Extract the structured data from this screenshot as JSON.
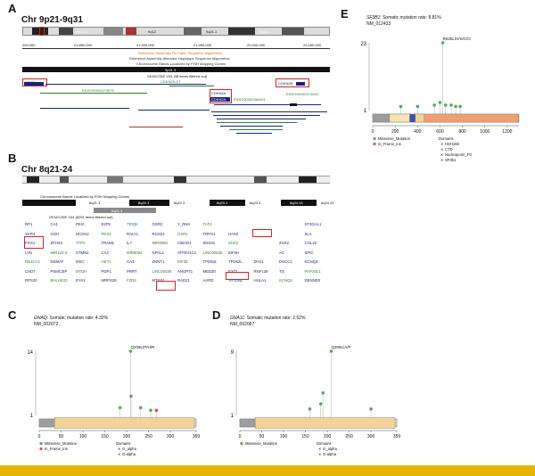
{
  "panels": {
    "A": {
      "label": "A",
      "title": "Chr 9p21-9q31",
      "ruler": [
        "000,000",
        "21,850,000",
        "21,900,000",
        "21,950,000",
        "22,000,000",
        "22,050,000"
      ],
      "track_lines": [
        "Reference Assembly Fix Patch Sequence Alignments",
        "Reference Assembly Alternate Haplotype Sequence Alignments",
        "Chromosome Bands Localized by FISH Mapping Clones"
      ],
      "band": "9p21.3",
      "gencode": "GENCODE V44 (38 items filtered out)",
      "genes": [
        "MTAP",
        "CDKN2A-DT",
        "CDKN2B",
        "CDKN2A",
        "CDKN2A",
        "ENSG00000274055",
        "ENSG00000279675",
        "ENSG00000284401"
      ],
      "cyto_bands": [
        "9p13.3",
        "9q12",
        "9q21.1",
        "9q31.1"
      ]
    },
    "B": {
      "label": "B",
      "title": "Chr 8q21-24",
      "track_lines": [
        "Chromosome Bands Localized by FISH Mapping Clones"
      ],
      "bands": [
        "8q21.3",
        "8q22.1",
        "8q22.3",
        "8q23.1",
        "8q23.3",
        "8q24.13",
        "8q24.22"
      ],
      "gencode": "GENCODE V44 (8251 items filtered out)",
      "gene_rows": [
        [
          "RP1",
          "CA1",
          "PKIA",
          "E2F5",
          "TRIQK",
          "OSR2",
          "Y_RNA",
          "TAF2",
          "",
          "",
          "",
          "ST3GAL1"
        ],
        [
          "XKR4",
          "GGH",
          "NCOA2",
          "PEX2",
          "RALYL",
          "RGS22",
          "OXR1",
          "TRPS1",
          "HAS2",
          "",
          "",
          "SLA"
        ],
        [
          "FGS1",
          "ZFHX4",
          "TTPA",
          "TRAM1",
          "IL7",
          "MIR8084",
          "CIBAR1",
          "SNX31",
          "ZHX2",
          "",
          "ZHX2",
          "COL22"
        ],
        [
          "LYN",
          "MIR124-2",
          "STMN2",
          "CA2",
          "MIR8084",
          "NPAL2",
          "ATP6V1C1",
          "LINC00536",
          "EIF3H",
          "",
          "AC",
          "SPIC"
        ],
        [
          "RB1CC1",
          "NSMAF",
          "MSC",
          "HEY1",
          "CA3",
          "ZNNT1",
          "EIF3E",
          "TPD52L",
          "TPD52L",
          "ZHX1",
          "DSCC1",
          "KCNQ3"
        ],
        [
          "CHD7",
          "PSMC3IP",
          "MTDH",
          "PDP1",
          "PRRT",
          "LINC00536",
          "ANGPT1",
          "MED30",
          "EXT1",
          "RNF139",
          "TG",
          "PHF20L1"
        ],
        [
          "RPS20",
          "BHLHE22",
          "EYA1",
          "MRPS28",
          "FZD6",
          "MTSS1",
          "RAD21",
          "AARD",
          "TATDN1",
          "HHLA1",
          "KCNQ3",
          "DENND3"
        ]
      ]
    },
    "C": {
      "label": "C",
      "gene": "GNAQ",
      "rate_text": ": Somatic mutation rate: 4.32%",
      "nm": "NM_002072",
      "ymax": "14",
      "ymin": "1",
      "hotspot": "Q209L/P/H/R",
      "xticks": [
        "0",
        "50",
        "100",
        "150",
        "200",
        "250",
        "300",
        "359"
      ],
      "legend": {
        "mut": [
          "Missense_Mutation",
          "In_Frame_Ins"
        ],
        "dom_title": "Domains",
        "doms": [
          "G_alpha",
          "G-alpha"
        ]
      }
    },
    "D": {
      "label": "D",
      "gene": "GNA11",
      "rate_text": ": Somatic mutation rate: 2.52%",
      "nm": "NM_002067",
      "ymax": "9",
      "ymin": "1",
      "hotspot": "Q209L/A/P",
      "xticks": [
        "0",
        "50",
        "100",
        "150",
        "200",
        "250",
        "300",
        "359"
      ],
      "legend": {
        "mut": [
          "Missense_Mutation"
        ],
        "dom_title": "Domains",
        "doms": [
          "G_alpha",
          "G-alpha"
        ]
      }
    },
    "E": {
      "label": "E",
      "gene": "SF3B1",
      "rate_text": ": Somatic mutation rate: 8.81%",
      "nm": "NM_012433",
      "ymax": "23",
      "ymin": "1",
      "hotspot": "R625L/H/S/C/G",
      "xticks": [
        "0",
        "200",
        "400",
        "600",
        "800",
        "1000",
        "1200"
      ],
      "legend": {
        "mut": [
          "Missense_Mutation",
          "In_Frame_Ins"
        ],
        "dom_title": "Domains",
        "doms": [
          "HSH155",
          "CTD",
          "Nucleoporin_FG",
          "SF3b1"
        ]
      }
    }
  },
  "colors": {
    "missense": "#4caf50",
    "inframe": "#e05050",
    "domain_tan": "#f2d49a",
    "gray": "#9e9e9e",
    "sf3b1": "#f0a070",
    "red": "#e02020",
    "bar": "#e8b400"
  }
}
